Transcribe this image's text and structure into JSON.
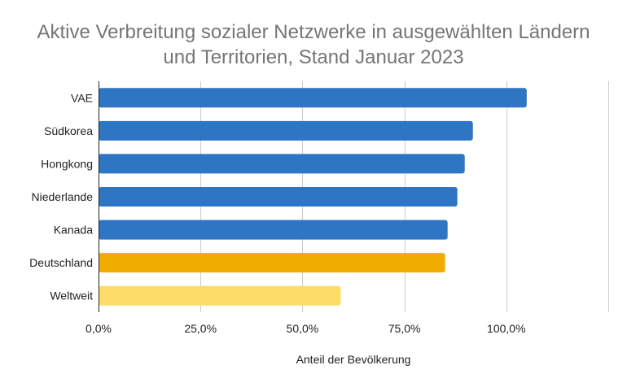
{
  "chart_data": {
    "type": "bar",
    "orientation": "horizontal",
    "title_lines": [
      "Aktive Verbreitung sozialer Netzwerke in ausgewählten Ländern",
      "und Territorien, Stand Januar 2023"
    ],
    "xlabel": "Anteil der Bevölkerung",
    "ylabel": "",
    "categories": [
      "VAE",
      "Südkorea",
      "Hongkong",
      "Niederlande",
      "Kanada",
      "Deutschland",
      "Weltweit"
    ],
    "values": [
      105.0,
      91.8,
      89.8,
      88.0,
      85.6,
      85.0,
      59.4
    ],
    "bar_colors": [
      "#2e75c3",
      "#2e75c3",
      "#2e75c3",
      "#2e75c3",
      "#2e75c3",
      "#f0ad00",
      "#fddc6a"
    ],
    "xlim": [
      0,
      125
    ],
    "x_ticks": [
      0,
      25,
      50,
      75,
      100
    ],
    "x_tick_labels": [
      "0,0%",
      "25,0%",
      "50,0%",
      "75,0%",
      "100,0%"
    ],
    "grid": true,
    "legend": "none"
  }
}
